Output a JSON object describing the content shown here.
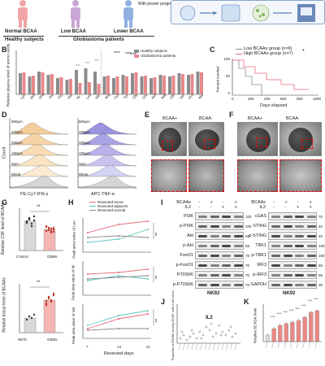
{
  "panelA": {
    "groups": [
      "Normal BCAA",
      "Low BCAA",
      "Lower BCAA"
    ],
    "note": "With poorer prognosis",
    "healthy": "Healthy subjects",
    "gbm": "Glioblastoma patients"
  },
  "panelB": {
    "letter": "B",
    "ylabel": "Relative plasma level of amino acids",
    "legend": [
      "Healthy subjects",
      "Glioblastoma patients"
    ],
    "categories": [
      "Lys",
      "Met",
      "Phe",
      "Thr",
      "Trp",
      "His",
      "Ile",
      "Leu",
      "Val",
      "Arg",
      "Cys",
      "Tyr",
      "Gly",
      "Glu",
      "Asn",
      "Asp",
      "Gln",
      "Ser",
      "Pro",
      "Ala"
    ],
    "sig": [
      "****",
      "****",
      "****"
    ]
  },
  "panelC": {
    "letter": "C",
    "legend": [
      "Low BCAAs group (n=6)",
      "High BCAAs group (n=7)"
    ],
    "ylabel": "Percent survival",
    "xlabel": "Days elapsed",
    "yticks": [
      "100",
      "50",
      "0"
    ],
    "xticks": [
      "0",
      "200",
      "400",
      "600",
      "800",
      "1000"
    ],
    "sig": "*"
  },
  "panelD": {
    "letter": "D",
    "rows": [
      "800μm",
      "400μm",
      "200μm",
      "100μm",
      "0μm",
      "Blank"
    ],
    "xlabel_left": "PE-Cy7-IFN-γ",
    "xlabel_right": "APC-TNF-α",
    "ylabel": "Count"
  },
  "panelE": {
    "letter": "E",
    "cols": [
      "BCAA+",
      "BCAA-"
    ]
  },
  "panelF": {
    "letter": "F",
    "cols": [
      "BCAA+",
      "BCAA-"
    ]
  },
  "panelG": {
    "letter": "G",
    "top_ylabel": "Relative CSF level of BCAAs",
    "top_groups": [
      "Control",
      "GBMs"
    ],
    "bottom_ylabel": "Relative tissue level of BCAAs",
    "bottom_groups": [
      "NETs",
      "GBMs"
    ],
    "sig": [
      "**",
      "**"
    ]
  },
  "panelH": {
    "letter": "H",
    "legend": [
      "Resected-tumor",
      "Resected-adjacent",
      "Resected-normal"
    ],
    "ylabels": [
      "Peak area value of Leu",
      "Peak area value of Ile",
      "Peak area value of Val"
    ],
    "xticks": [
      "7",
      "14",
      "21"
    ],
    "xlabel": "Resected-days",
    "sig": [
      "ns",
      "ns",
      "ns"
    ]
  },
  "panelI": {
    "letter": "I",
    "header": [
      "BCAAs",
      "IL2"
    ],
    "signs_bcaa": [
      "-",
      "+",
      "-",
      "+"
    ],
    "signs_il2": [
      "-",
      "-",
      "+",
      "+"
    ],
    "left_rows": [
      {
        "name": "PI3K",
        "mw": "100"
      },
      {
        "name": "p-PI3K",
        "mw": "100"
      },
      {
        "name": "Akt",
        "mw": "55"
      },
      {
        "name": "p-Akt",
        "mw": "55"
      },
      {
        "name": "FoxO1",
        "mw": "70"
      },
      {
        "name": "p-FoxO1",
        "mw": "70"
      },
      {
        "name": "P70S6K",
        "mw": "70"
      },
      {
        "name": "p-P70S6K",
        "mw": "70"
      }
    ],
    "right_rows": [
      {
        "name": "cGAS",
        "mw": "70"
      },
      {
        "name": "STING",
        "mw": "40"
      },
      {
        "name": "p-STING",
        "mw": "40"
      },
      {
        "name": "TBK1",
        "mw": "100"
      },
      {
        "name": "p-TBK1",
        "mw": "100"
      },
      {
        "name": "IRF3",
        "mw": "55"
      },
      {
        "name": "p-IRF3",
        "mw": "55"
      },
      {
        "name": "GAPDH",
        "mw": "35"
      }
    ],
    "cell_line": "NK92"
  },
  "panelJ": {
    "letter": "J",
    "ylabel": "Proportion of BCKDK among CD45+ cells in the tumor",
    "annotation": "IL2"
  },
  "panelK": {
    "letter": "K",
    "ylabel": "Relative BCKDK level",
    "sig": [
      "****",
      "****",
      "****",
      "****",
      "****",
      "****",
      "****",
      "****"
    ]
  }
}
